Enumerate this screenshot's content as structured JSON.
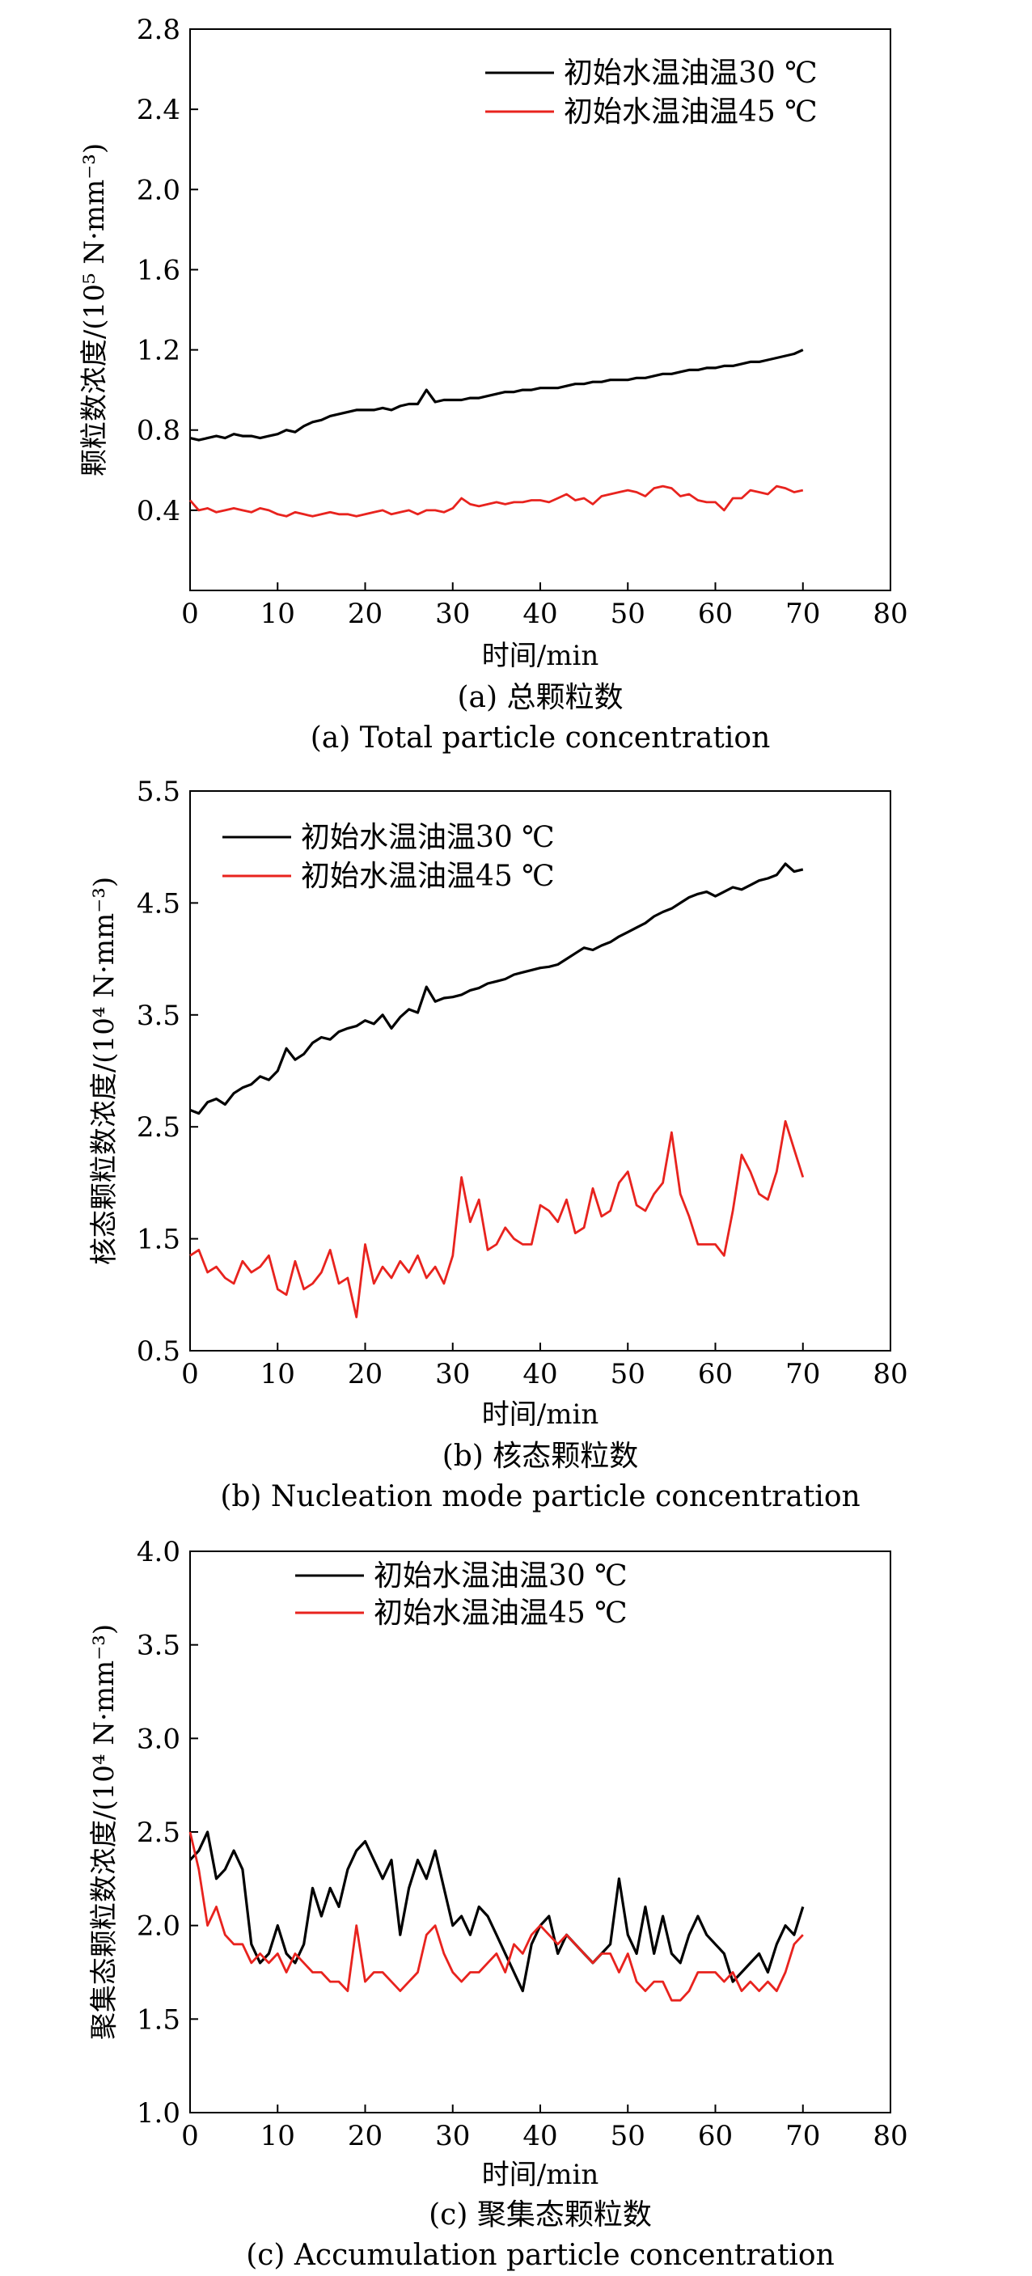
{
  "colors": {
    "series_a": "#000000",
    "series_b": "#e8231e"
  },
  "legend_labels": [
    "初始水温油温30 ℃",
    "初始水温油温45 ℃"
  ],
  "chart_data": [
    {
      "type": "line",
      "title": "(a) 总颗粒数",
      "subtitle": "(a) Total particle concentration",
      "xlabel": "时间/min",
      "ylabel": "颗粒数浓度/(10⁵ N·mm⁻³)",
      "xlim": [
        0,
        80
      ],
      "ylim": [
        0,
        2.8
      ],
      "xticks": [
        0,
        10,
        20,
        30,
        40,
        50,
        60,
        70,
        80
      ],
      "yticks": [
        "",
        "0.4",
        "0.8",
        "1.2",
        "1.6",
        "2.0",
        "2.4",
        "2.8"
      ],
      "x": [
        0,
        1,
        2,
        3,
        4,
        5,
        6,
        7,
        8,
        9,
        10,
        11,
        12,
        13,
        14,
        15,
        16,
        17,
        18,
        19,
        20,
        21,
        22,
        23,
        24,
        25,
        26,
        27,
        28,
        29,
        30,
        31,
        32,
        33,
        34,
        35,
        36,
        37,
        38,
        39,
        40,
        41,
        42,
        43,
        44,
        45,
        46,
        47,
        48,
        49,
        50,
        51,
        52,
        53,
        54,
        55,
        56,
        57,
        58,
        59,
        60,
        61,
        62,
        63,
        64,
        65,
        66,
        67,
        68,
        69,
        70
      ],
      "series": [
        {
          "name": "初始水温油温30 ℃",
          "values": [
            0.76,
            0.75,
            0.76,
            0.77,
            0.76,
            0.78,
            0.77,
            0.77,
            0.76,
            0.77,
            0.78,
            0.8,
            0.79,
            0.82,
            0.84,
            0.85,
            0.87,
            0.88,
            0.89,
            0.9,
            0.9,
            0.9,
            0.91,
            0.9,
            0.92,
            0.93,
            0.93,
            1.0,
            0.94,
            0.95,
            0.95,
            0.95,
            0.96,
            0.96,
            0.97,
            0.98,
            0.99,
            0.99,
            1.0,
            1.0,
            1.01,
            1.01,
            1.01,
            1.02,
            1.03,
            1.03,
            1.04,
            1.04,
            1.05,
            1.05,
            1.05,
            1.06,
            1.06,
            1.07,
            1.08,
            1.08,
            1.09,
            1.1,
            1.1,
            1.11,
            1.11,
            1.12,
            1.12,
            1.13,
            1.14,
            1.14,
            1.15,
            1.16,
            1.17,
            1.18,
            1.2
          ]
        },
        {
          "name": "初始水温油温45 ℃",
          "values": [
            0.45,
            0.4,
            0.41,
            0.39,
            0.4,
            0.41,
            0.4,
            0.39,
            0.41,
            0.4,
            0.38,
            0.37,
            0.39,
            0.38,
            0.37,
            0.38,
            0.39,
            0.38,
            0.38,
            0.37,
            0.38,
            0.39,
            0.4,
            0.38,
            0.39,
            0.4,
            0.38,
            0.4,
            0.4,
            0.39,
            0.41,
            0.46,
            0.43,
            0.42,
            0.43,
            0.44,
            0.43,
            0.44,
            0.44,
            0.45,
            0.45,
            0.44,
            0.46,
            0.48,
            0.45,
            0.46,
            0.43,
            0.47,
            0.48,
            0.49,
            0.5,
            0.49,
            0.47,
            0.51,
            0.52,
            0.51,
            0.47,
            0.48,
            0.45,
            0.44,
            0.44,
            0.4,
            0.46,
            0.46,
            0.5,
            0.49,
            0.48,
            0.52,
            0.51,
            0.49,
            0.5
          ]
        }
      ]
    },
    {
      "type": "line",
      "title": "(b) 核态颗粒数",
      "subtitle": "(b) Nucleation mode particle concentration",
      "xlabel": "时间/min",
      "ylabel": "核态颗粒数浓度/(10⁴ N·mm⁻³)",
      "xlim": [
        0,
        80
      ],
      "ylim": [
        0.5,
        5.5
      ],
      "xticks": [
        0,
        10,
        20,
        30,
        40,
        50,
        60,
        70,
        80
      ],
      "yticks": [
        "0.5",
        "1.5",
        "2.5",
        "3.5",
        "4.5",
        "5.5"
      ],
      "x": [
        0,
        1,
        2,
        3,
        4,
        5,
        6,
        7,
        8,
        9,
        10,
        11,
        12,
        13,
        14,
        15,
        16,
        17,
        18,
        19,
        20,
        21,
        22,
        23,
        24,
        25,
        26,
        27,
        28,
        29,
        30,
        31,
        32,
        33,
        34,
        35,
        36,
        37,
        38,
        39,
        40,
        41,
        42,
        43,
        44,
        45,
        46,
        47,
        48,
        49,
        50,
        51,
        52,
        53,
        54,
        55,
        56,
        57,
        58,
        59,
        60,
        61,
        62,
        63,
        64,
        65,
        66,
        67,
        68,
        69,
        70
      ],
      "series": [
        {
          "name": "初始水温油温30 ℃",
          "values": [
            2.65,
            2.62,
            2.72,
            2.75,
            2.7,
            2.8,
            2.85,
            2.88,
            2.95,
            2.92,
            3.0,
            3.2,
            3.1,
            3.15,
            3.25,
            3.3,
            3.28,
            3.35,
            3.38,
            3.4,
            3.45,
            3.42,
            3.5,
            3.38,
            3.48,
            3.55,
            3.52,
            3.75,
            3.62,
            3.65,
            3.66,
            3.68,
            3.72,
            3.74,
            3.78,
            3.8,
            3.82,
            3.86,
            3.88,
            3.9,
            3.92,
            3.93,
            3.95,
            4.0,
            4.05,
            4.1,
            4.08,
            4.12,
            4.15,
            4.2,
            4.24,
            4.28,
            4.32,
            4.38,
            4.42,
            4.45,
            4.5,
            4.55,
            4.58,
            4.6,
            4.56,
            4.6,
            4.64,
            4.62,
            4.66,
            4.7,
            4.72,
            4.75,
            4.85,
            4.78,
            4.8
          ]
        },
        {
          "name": "初始水温油温45 ℃",
          "values": [
            1.35,
            1.4,
            1.2,
            1.25,
            1.15,
            1.1,
            1.3,
            1.2,
            1.25,
            1.35,
            1.05,
            1.0,
            1.3,
            1.05,
            1.1,
            1.2,
            1.4,
            1.1,
            1.15,
            0.8,
            1.45,
            1.1,
            1.25,
            1.15,
            1.3,
            1.2,
            1.35,
            1.15,
            1.25,
            1.1,
            1.35,
            2.05,
            1.65,
            1.85,
            1.4,
            1.45,
            1.6,
            1.5,
            1.45,
            1.45,
            1.8,
            1.75,
            1.65,
            1.85,
            1.55,
            1.6,
            1.95,
            1.7,
            1.75,
            2.0,
            2.1,
            1.8,
            1.75,
            1.9,
            2.0,
            2.45,
            1.9,
            1.7,
            1.45,
            1.45,
            1.45,
            1.35,
            1.75,
            2.25,
            2.1,
            1.9,
            1.85,
            2.1,
            2.55,
            2.3,
            2.05
          ]
        }
      ]
    },
    {
      "type": "line",
      "title": "(c) 聚集态颗粒数",
      "subtitle": "(c) Accumulation particle concentration",
      "xlabel": "时间/min",
      "ylabel": "聚集态颗粒数浓度/(10⁴ N·mm⁻³)",
      "xlim": [
        0,
        80
      ],
      "ylim": [
        1.0,
        4.0
      ],
      "xticks": [
        0,
        10,
        20,
        30,
        40,
        50,
        60,
        70,
        80
      ],
      "yticks": [
        "1.0",
        "1.5",
        "2.0",
        "2.5",
        "3.0",
        "3.5",
        "4.0"
      ],
      "x": [
        0,
        1,
        2,
        3,
        4,
        5,
        6,
        7,
        8,
        9,
        10,
        11,
        12,
        13,
        14,
        15,
        16,
        17,
        18,
        19,
        20,
        21,
        22,
        23,
        24,
        25,
        26,
        27,
        28,
        29,
        30,
        31,
        32,
        33,
        34,
        35,
        36,
        37,
        38,
        39,
        40,
        41,
        42,
        43,
        44,
        45,
        46,
        47,
        48,
        49,
        50,
        51,
        52,
        53,
        54,
        55,
        56,
        57,
        58,
        59,
        60,
        61,
        62,
        63,
        64,
        65,
        66,
        67,
        68,
        69,
        70
      ],
      "series": [
        {
          "name": "初始水温油温30 ℃",
          "values": [
            2.35,
            2.4,
            2.5,
            2.25,
            2.3,
            2.4,
            2.3,
            1.9,
            1.8,
            1.85,
            2.0,
            1.85,
            1.8,
            1.9,
            2.2,
            2.05,
            2.2,
            2.1,
            2.3,
            2.4,
            2.45,
            2.35,
            2.25,
            2.35,
            1.95,
            2.2,
            2.35,
            2.25,
            2.4,
            2.2,
            2.0,
            2.05,
            1.95,
            2.1,
            2.05,
            1.95,
            1.85,
            1.75,
            1.65,
            1.9,
            2.0,
            2.05,
            1.85,
            1.95,
            1.9,
            1.85,
            1.8,
            1.85,
            1.9,
            2.25,
            1.95,
            1.85,
            2.1,
            1.85,
            2.05,
            1.85,
            1.8,
            1.95,
            2.05,
            1.95,
            1.9,
            1.85,
            1.7,
            1.75,
            1.8,
            1.85,
            1.75,
            1.9,
            2.0,
            1.95,
            2.1
          ]
        },
        {
          "name": "初始水温油温45 ℃",
          "values": [
            2.5,
            2.3,
            2.0,
            2.1,
            1.95,
            1.9,
            1.9,
            1.8,
            1.85,
            1.8,
            1.85,
            1.75,
            1.85,
            1.8,
            1.75,
            1.75,
            1.7,
            1.7,
            1.65,
            2.0,
            1.7,
            1.75,
            1.75,
            1.7,
            1.65,
            1.7,
            1.75,
            1.95,
            2.0,
            1.85,
            1.75,
            1.7,
            1.75,
            1.75,
            1.8,
            1.85,
            1.75,
            1.9,
            1.85,
            1.95,
            2.0,
            1.95,
            1.9,
            1.95,
            1.9,
            1.85,
            1.8,
            1.85,
            1.85,
            1.75,
            1.85,
            1.7,
            1.65,
            1.7,
            1.7,
            1.6,
            1.6,
            1.65,
            1.75,
            1.75,
            1.75,
            1.7,
            1.75,
            1.65,
            1.7,
            1.65,
            1.7,
            1.65,
            1.75,
            1.9,
            1.95
          ]
        }
      ]
    }
  ]
}
